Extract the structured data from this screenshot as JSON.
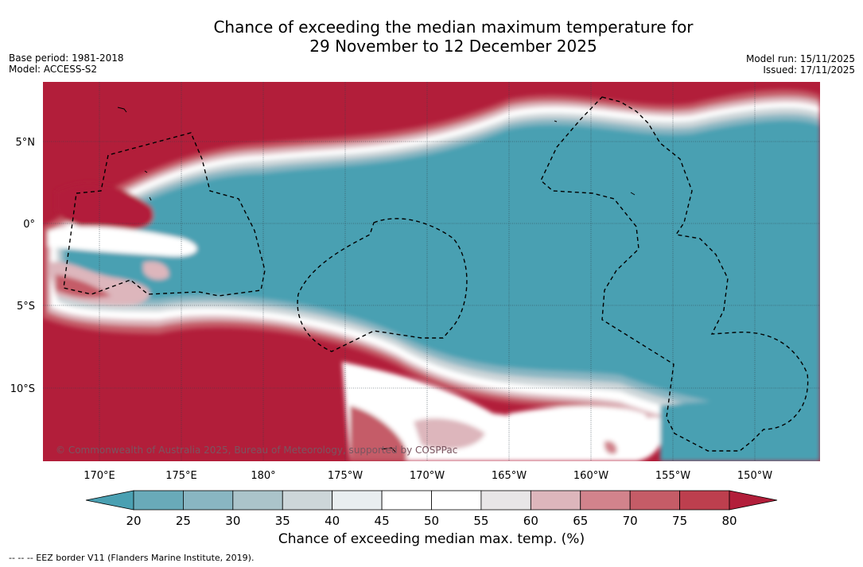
{
  "header": {
    "title_line1": "Chance of exceeding the median maximum temperature for",
    "title_line2": "29 November to 12 December 2025",
    "base_period": "Base period: 1981-2018",
    "model": "Model: ACCESS-S2",
    "model_run": "Model run: 15/11/2025",
    "issued": "Issued: 17/11/2025"
  },
  "map": {
    "lat_labels": [
      "5°N",
      "0°",
      "5°S",
      "10°S"
    ],
    "lon_labels": [
      "170°E",
      "175°E",
      "180°",
      "175°W",
      "170°W",
      "165°W",
      "160°W",
      "155°W",
      "150°W"
    ],
    "copyright": "© Commonwealth of Australia 2025, Bureau of Meteorology, supported by COSPPac",
    "colors": {
      "above_80": "#b21e3a",
      "land_border": "#000000",
      "grid": "#30404a"
    }
  },
  "colorbar": {
    "ticks": [
      "20",
      "25",
      "30",
      "35",
      "40",
      "45",
      "50",
      "55",
      "60",
      "65",
      "70",
      "75",
      "80"
    ],
    "colors": [
      "#4aa0b2",
      "#69aab9",
      "#89b6c2",
      "#abc4ca",
      "#cdd6d9",
      "#e9eef0",
      "#ffffff",
      "#ffffff",
      "#e8e6e7",
      "#ddb6bc",
      "#d2838c",
      "#c55c67",
      "#bd3f4e",
      "#b21e3a"
    ],
    "label": "Chance of exceeding median max. temp. (%)"
  },
  "footnote": "--  --  -- EEZ border V11 (Flanders Marine Institute, 2019)."
}
